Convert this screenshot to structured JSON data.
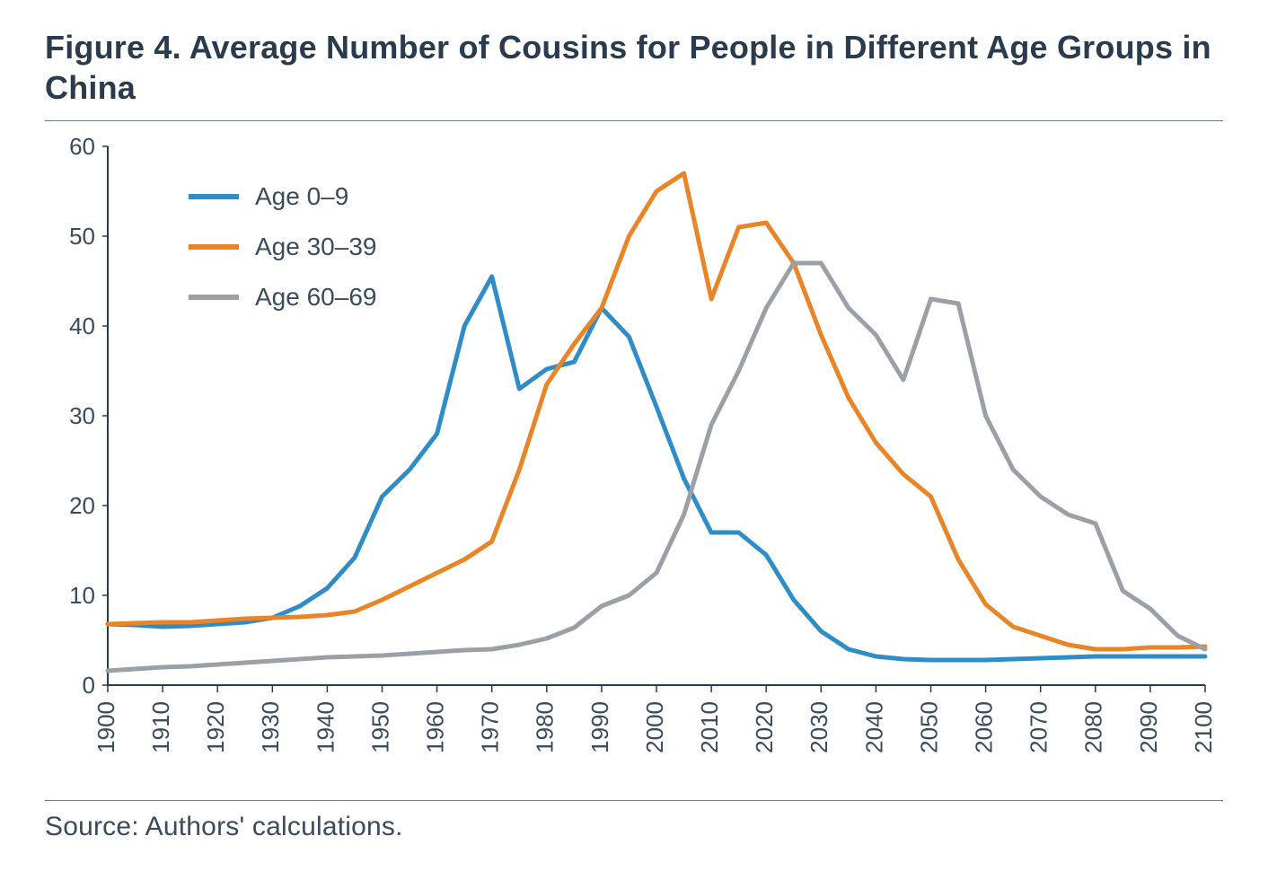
{
  "figure": {
    "title": "Figure 4. Average Number of Cousins for People in Different Age Groups in China",
    "source": "Source: Authors' calculations.",
    "chart": {
      "type": "line",
      "background_color": "#ffffff",
      "axis_color": "#2a3b4d",
      "tick_color": "#2a3b4d",
      "label_color": "#3a4b5c",
      "title_color": "#2a3b4d",
      "rule_color": "#6f7a84",
      "title_fontsize": 36,
      "label_fontsize": 26,
      "legend_fontsize": 28,
      "line_width": 5,
      "xlim": [
        1900,
        2100
      ],
      "ylim": [
        0,
        60
      ],
      "ytick_step": 10,
      "xtick_step": 10,
      "x_ticks": [
        1900,
        1910,
        1920,
        1930,
        1940,
        1950,
        1960,
        1970,
        1980,
        1990,
        2000,
        2010,
        2020,
        2030,
        2040,
        2050,
        2060,
        2070,
        2080,
        2090,
        2100
      ],
      "y_ticks": [
        0,
        10,
        20,
        30,
        40,
        50,
        60
      ],
      "x_tick_rotation": -90,
      "legend": {
        "position": "upper-left",
        "items": [
          {
            "label": "Age 0–9",
            "color": "#2e8dc6"
          },
          {
            "label": "Age 30–39",
            "color": "#e98427"
          },
          {
            "label": "Age 60–69",
            "color": "#9aa0a6"
          }
        ]
      },
      "series": [
        {
          "name": "Age 0–9",
          "color": "#2e8dc6",
          "x": [
            1900,
            1905,
            1910,
            1915,
            1920,
            1925,
            1930,
            1935,
            1940,
            1945,
            1950,
            1955,
            1960,
            1965,
            1970,
            1975,
            1980,
            1985,
            1990,
            1995,
            2000,
            2005,
            2010,
            2015,
            2020,
            2025,
            2030,
            2035,
            2040,
            2045,
            2050,
            2055,
            2060,
            2065,
            2070,
            2075,
            2080,
            2085,
            2090,
            2095,
            2100
          ],
          "y": [
            6.8,
            6.7,
            6.5,
            6.6,
            6.8,
            7.0,
            7.5,
            8.8,
            10.8,
            14.2,
            21.0,
            24.0,
            28.0,
            40.0,
            45.5,
            33.0,
            35.2,
            36.0,
            42.0,
            38.8,
            31.0,
            23.0,
            17.0,
            17.0,
            14.5,
            9.5,
            6.0,
            4.0,
            3.2,
            2.9,
            2.8,
            2.8,
            2.8,
            2.9,
            3.0,
            3.1,
            3.2,
            3.2,
            3.2,
            3.2,
            3.2
          ]
        },
        {
          "name": "Age 30–39",
          "color": "#e98427",
          "x": [
            1900,
            1905,
            1910,
            1915,
            1920,
            1925,
            1930,
            1935,
            1940,
            1945,
            1950,
            1955,
            1960,
            1965,
            1970,
            1975,
            1980,
            1985,
            1990,
            1995,
            2000,
            2005,
            2010,
            2015,
            2020,
            2025,
            2030,
            2035,
            2040,
            2045,
            2050,
            2055,
            2060,
            2065,
            2070,
            2075,
            2080,
            2085,
            2090,
            2095,
            2100
          ],
          "y": [
            6.8,
            6.9,
            7.0,
            7.0,
            7.2,
            7.4,
            7.5,
            7.6,
            7.8,
            8.2,
            9.5,
            11.0,
            12.5,
            14.0,
            16.0,
            24.0,
            33.5,
            38.0,
            42.0,
            50.0,
            55.0,
            57.0,
            43.0,
            51.0,
            51.5,
            47.0,
            39.0,
            32.0,
            27.0,
            23.5,
            21.0,
            14.0,
            9.0,
            6.5,
            5.5,
            4.5,
            4.0,
            4.0,
            4.2,
            4.2,
            4.3
          ]
        },
        {
          "name": "Age 60–69",
          "color": "#9aa0a6",
          "x": [
            1900,
            1905,
            1910,
            1915,
            1920,
            1925,
            1930,
            1935,
            1940,
            1945,
            1950,
            1955,
            1960,
            1965,
            1970,
            1975,
            1980,
            1985,
            1990,
            1995,
            2000,
            2005,
            2010,
            2015,
            2020,
            2025,
            2030,
            2035,
            2040,
            2045,
            2050,
            2055,
            2060,
            2065,
            2070,
            2075,
            2080,
            2085,
            2090,
            2095,
            2100
          ],
          "y": [
            1.6,
            1.8,
            2.0,
            2.1,
            2.3,
            2.5,
            2.7,
            2.9,
            3.1,
            3.2,
            3.3,
            3.5,
            3.7,
            3.9,
            4.0,
            4.5,
            5.2,
            6.4,
            8.8,
            10.0,
            12.5,
            19.0,
            29.0,
            35.0,
            42.0,
            47.0,
            47.0,
            42.0,
            39.0,
            34.0,
            43.0,
            42.5,
            30.0,
            24.0,
            21.0,
            19.0,
            18.0,
            10.5,
            8.5,
            5.5,
            4.0
          ]
        }
      ]
    }
  }
}
